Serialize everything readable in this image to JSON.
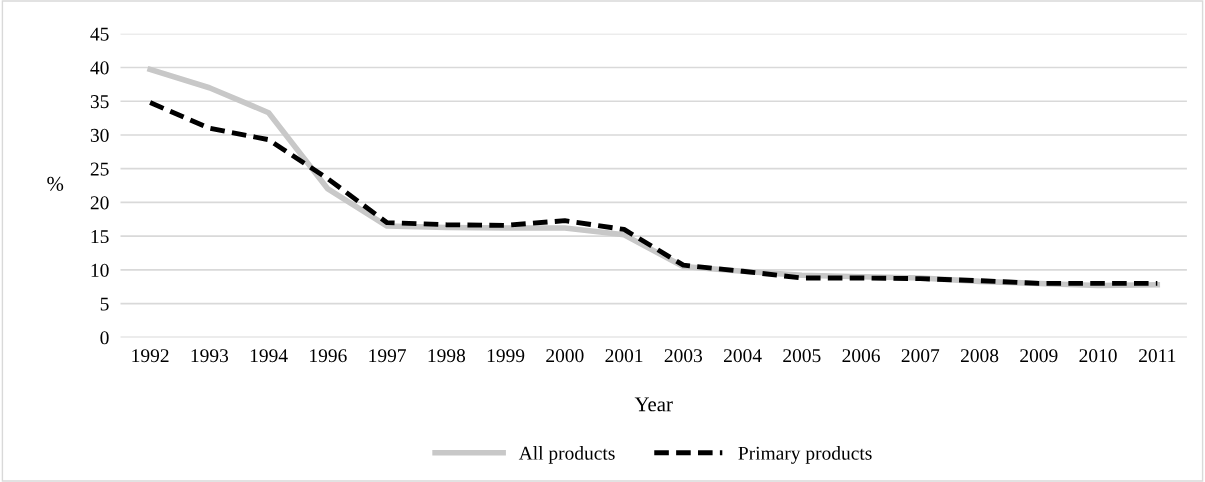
{
  "chart_data": {
    "type": "line",
    "xlabel": "Year",
    "ylabel": "%",
    "categories": [
      "1992",
      "1993",
      "1994",
      "1996",
      "1997",
      "1998",
      "1999",
      "2000",
      "2001",
      "2003",
      "2004",
      "2005",
      "2006",
      "2007",
      "2008",
      "2009",
      "2010",
      "2011"
    ],
    "series": [
      {
        "name": "All products",
        "color": "#c8c8c8",
        "line_style": "solid",
        "values": [
          39.7,
          37,
          33.3,
          22,
          16.5,
          16.3,
          16.2,
          16.2,
          15.2,
          10.5,
          9.8,
          9.2,
          9,
          8.8,
          8.3,
          8,
          7.7,
          7.8
        ]
      },
      {
        "name": "Primary products",
        "color": "#000000",
        "line_style": "dashed",
        "values": [
          34.8,
          31,
          29.3,
          23.5,
          17,
          16.7,
          16.6,
          17.3,
          16,
          10.7,
          9.8,
          8.8,
          8.8,
          8.7,
          8.4,
          8,
          8,
          8
        ]
      }
    ],
    "ylim": [
      0,
      45
    ],
    "yticks": [
      0,
      5,
      10,
      15,
      20,
      25,
      30,
      35,
      40,
      45
    ],
    "grid": "y",
    "legend": "bottom",
    "marker": "none"
  }
}
